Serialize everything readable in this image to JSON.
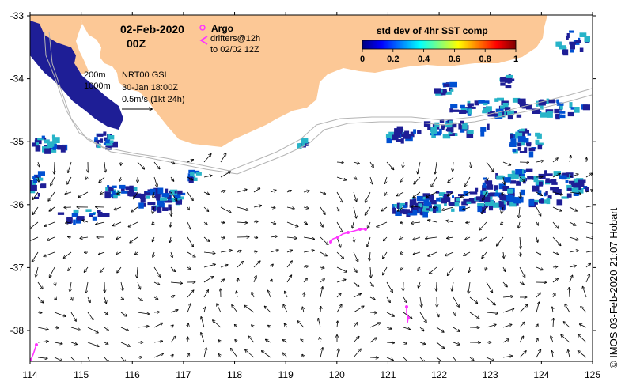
{
  "title": {
    "date": "02-Feb-2020",
    "hour": "00Z"
  },
  "legend": {
    "argo_label": "Argo",
    "drifters_label": "drifters@12h",
    "drifters_sub": "to 02/02 12Z",
    "depth_200": "200m",
    "depth_1000": "1000m",
    "model_label": "NRT00 GSL",
    "model_date": "30-Jan 18:00Z",
    "vector_scale": "0.5m/s (1kt 24h)",
    "argo_color": "#ff33ff",
    "drifter_color": "#ff33ff"
  },
  "colorbar": {
    "title": "std dev of 4hr SST comp",
    "ticks": [
      "0",
      "0.2",
      "0.4",
      "0.6",
      "0.8",
      "1"
    ],
    "colors": [
      "#00007f",
      "#0000ff",
      "#007fff",
      "#00ffff",
      "#7fff7f",
      "#ffff00",
      "#ff7f00",
      "#ff0000",
      "#7f0000"
    ]
  },
  "axes": {
    "x_ticks": [
      "114",
      "115",
      "116",
      "117",
      "118",
      "119",
      "120",
      "121",
      "122",
      "123",
      "124",
      "125"
    ],
    "y_ticks": [
      "-33",
      "-34",
      "-35",
      "-36",
      "-37",
      "-38"
    ]
  },
  "credit": "© IMOS 03-Feb-2020 21:07 Hobart",
  "colors": {
    "land": "#fcc896",
    "sst_dark": "#1e1e96",
    "sst_mid": "#0050d2",
    "sst_light": "#28b4c8"
  }
}
